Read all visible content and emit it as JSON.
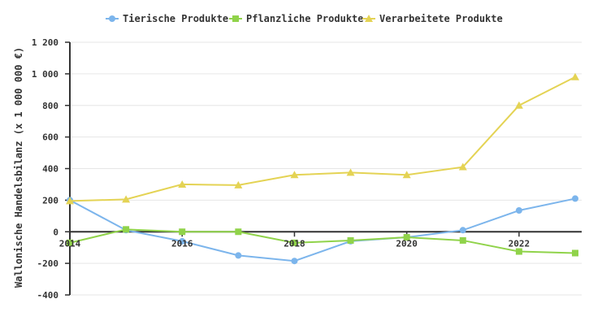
{
  "chart_data": {
    "type": "line",
    "ylabel": "Wallonische Handelsbilanz (x 1 000 000 €)",
    "xlabel": "",
    "x": [
      2014,
      2015,
      2016,
      2017,
      2018,
      2019,
      2020,
      2021,
      2022,
      2023
    ],
    "x_ticks": [
      "2014",
      "2016",
      "2018",
      "2020",
      "2022"
    ],
    "y_ticks": [
      "1 200",
      "1 000",
      "800",
      "600",
      "400",
      "200",
      "0",
      "-200",
      "-400"
    ],
    "ylim": [
      -400,
      1200
    ],
    "grid": true,
    "legend_position": "top",
    "series": [
      {
        "name": "Tierische Produkte",
        "color": "#7cb5ec",
        "marker": "circle",
        "values": [
          200,
          10,
          -60,
          -150,
          -185,
          -60,
          -35,
          10,
          135,
          210
        ]
      },
      {
        "name": "Pflanzliche Produkte",
        "color": "#90d34a",
        "marker": "square",
        "values": [
          -70,
          15,
          0,
          0,
          -70,
          -55,
          -35,
          -55,
          -125,
          -135
        ]
      },
      {
        "name": "Verarbeitete Produkte",
        "color": "#e4d354",
        "marker": "triangle",
        "values": [
          195,
          205,
          300,
          295,
          360,
          375,
          360,
          410,
          800,
          980
        ]
      }
    ]
  }
}
